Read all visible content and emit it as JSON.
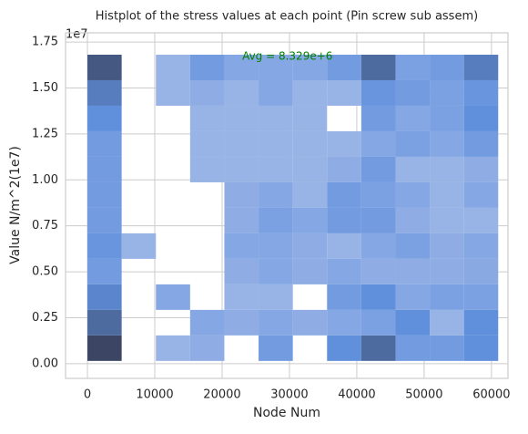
{
  "chart_data": {
    "type": "histogram2d",
    "title": "Histplot of the stress values at each point (Pin screw sub assem)",
    "xlabel": "Node Num",
    "ylabel": "Value N/m^2(1e7)",
    "y_offset_label": "1e7",
    "annotation": {
      "text": "Avg = 8.329e+6",
      "x": 29700,
      "y": 16700000,
      "color": "#008000"
    },
    "xbins": [
      0,
      5083,
      10167,
      15250,
      20333,
      25417,
      30500,
      35583,
      40667,
      45750,
      50833,
      55917,
      61000
    ],
    "ybins": [
      150000,
      1538333,
      2926667,
      4315000,
      5703333,
      7091667,
      8480000,
      9868333,
      11256667,
      12645000,
      14033333,
      15421667,
      16810000
    ],
    "counts": [
      [
        9,
        0,
        2,
        2.5,
        0,
        4,
        0,
        5,
        7,
        4,
        4,
        5
      ],
      [
        7,
        0,
        0,
        3,
        2.5,
        3,
        2.5,
        3,
        3.5,
        5,
        2,
        5
      ],
      [
        5.5,
        0,
        3,
        0,
        2,
        2,
        0,
        4,
        5,
        3,
        3.5,
        3.5
      ],
      [
        4,
        0,
        0,
        0,
        2.5,
        3,
        2.5,
        3,
        2.5,
        2.5,
        2.5,
        2.8
      ],
      [
        4.5,
        2,
        0,
        0,
        3,
        3,
        2.5,
        2,
        3,
        3.5,
        2.5,
        3
      ],
      [
        4,
        0,
        0,
        0,
        2.5,
        3.5,
        3,
        4,
        4,
        2.5,
        2,
        2
      ],
      [
        4,
        0,
        0,
        0,
        2.5,
        3,
        2,
        4,
        3.5,
        3,
        2,
        3
      ],
      [
        4,
        0,
        0,
        2,
        2,
        2,
        2,
        2.5,
        4,
        2,
        2,
        2.5
      ],
      [
        4,
        0,
        0,
        2,
        2,
        2,
        2,
        2,
        3,
        3.5,
        3,
        4
      ],
      [
        5,
        0,
        0,
        2,
        2,
        2,
        2,
        0,
        4,
        3,
        3.5,
        5
      ],
      [
        6,
        0,
        2,
        2.5,
        2,
        3,
        2,
        2,
        4.5,
        4,
        3.5,
        4.5
      ],
      [
        8,
        0,
        2,
        4,
        3,
        3,
        3,
        4,
        7,
        3.5,
        4,
        6
      ]
    ],
    "xlim": [
      -3250,
      62450
    ],
    "ylim": [
      -800000,
      18000000
    ],
    "xticks": [
      0,
      10000,
      20000,
      30000,
      40000,
      50000,
      60000
    ],
    "yticks": [
      {
        "value": 0,
        "label": "0.00"
      },
      {
        "value": 2500000,
        "label": "0.25"
      },
      {
        "value": 5000000,
        "label": "0.50"
      },
      {
        "value": 7500000,
        "label": "0.75"
      },
      {
        "value": 10000000,
        "label": "1.00"
      },
      {
        "value": 12500000,
        "label": "1.25"
      },
      {
        "value": 15000000,
        "label": "1.50"
      },
      {
        "value": 17500000,
        "label": "1.75"
      }
    ],
    "grid": true
  }
}
